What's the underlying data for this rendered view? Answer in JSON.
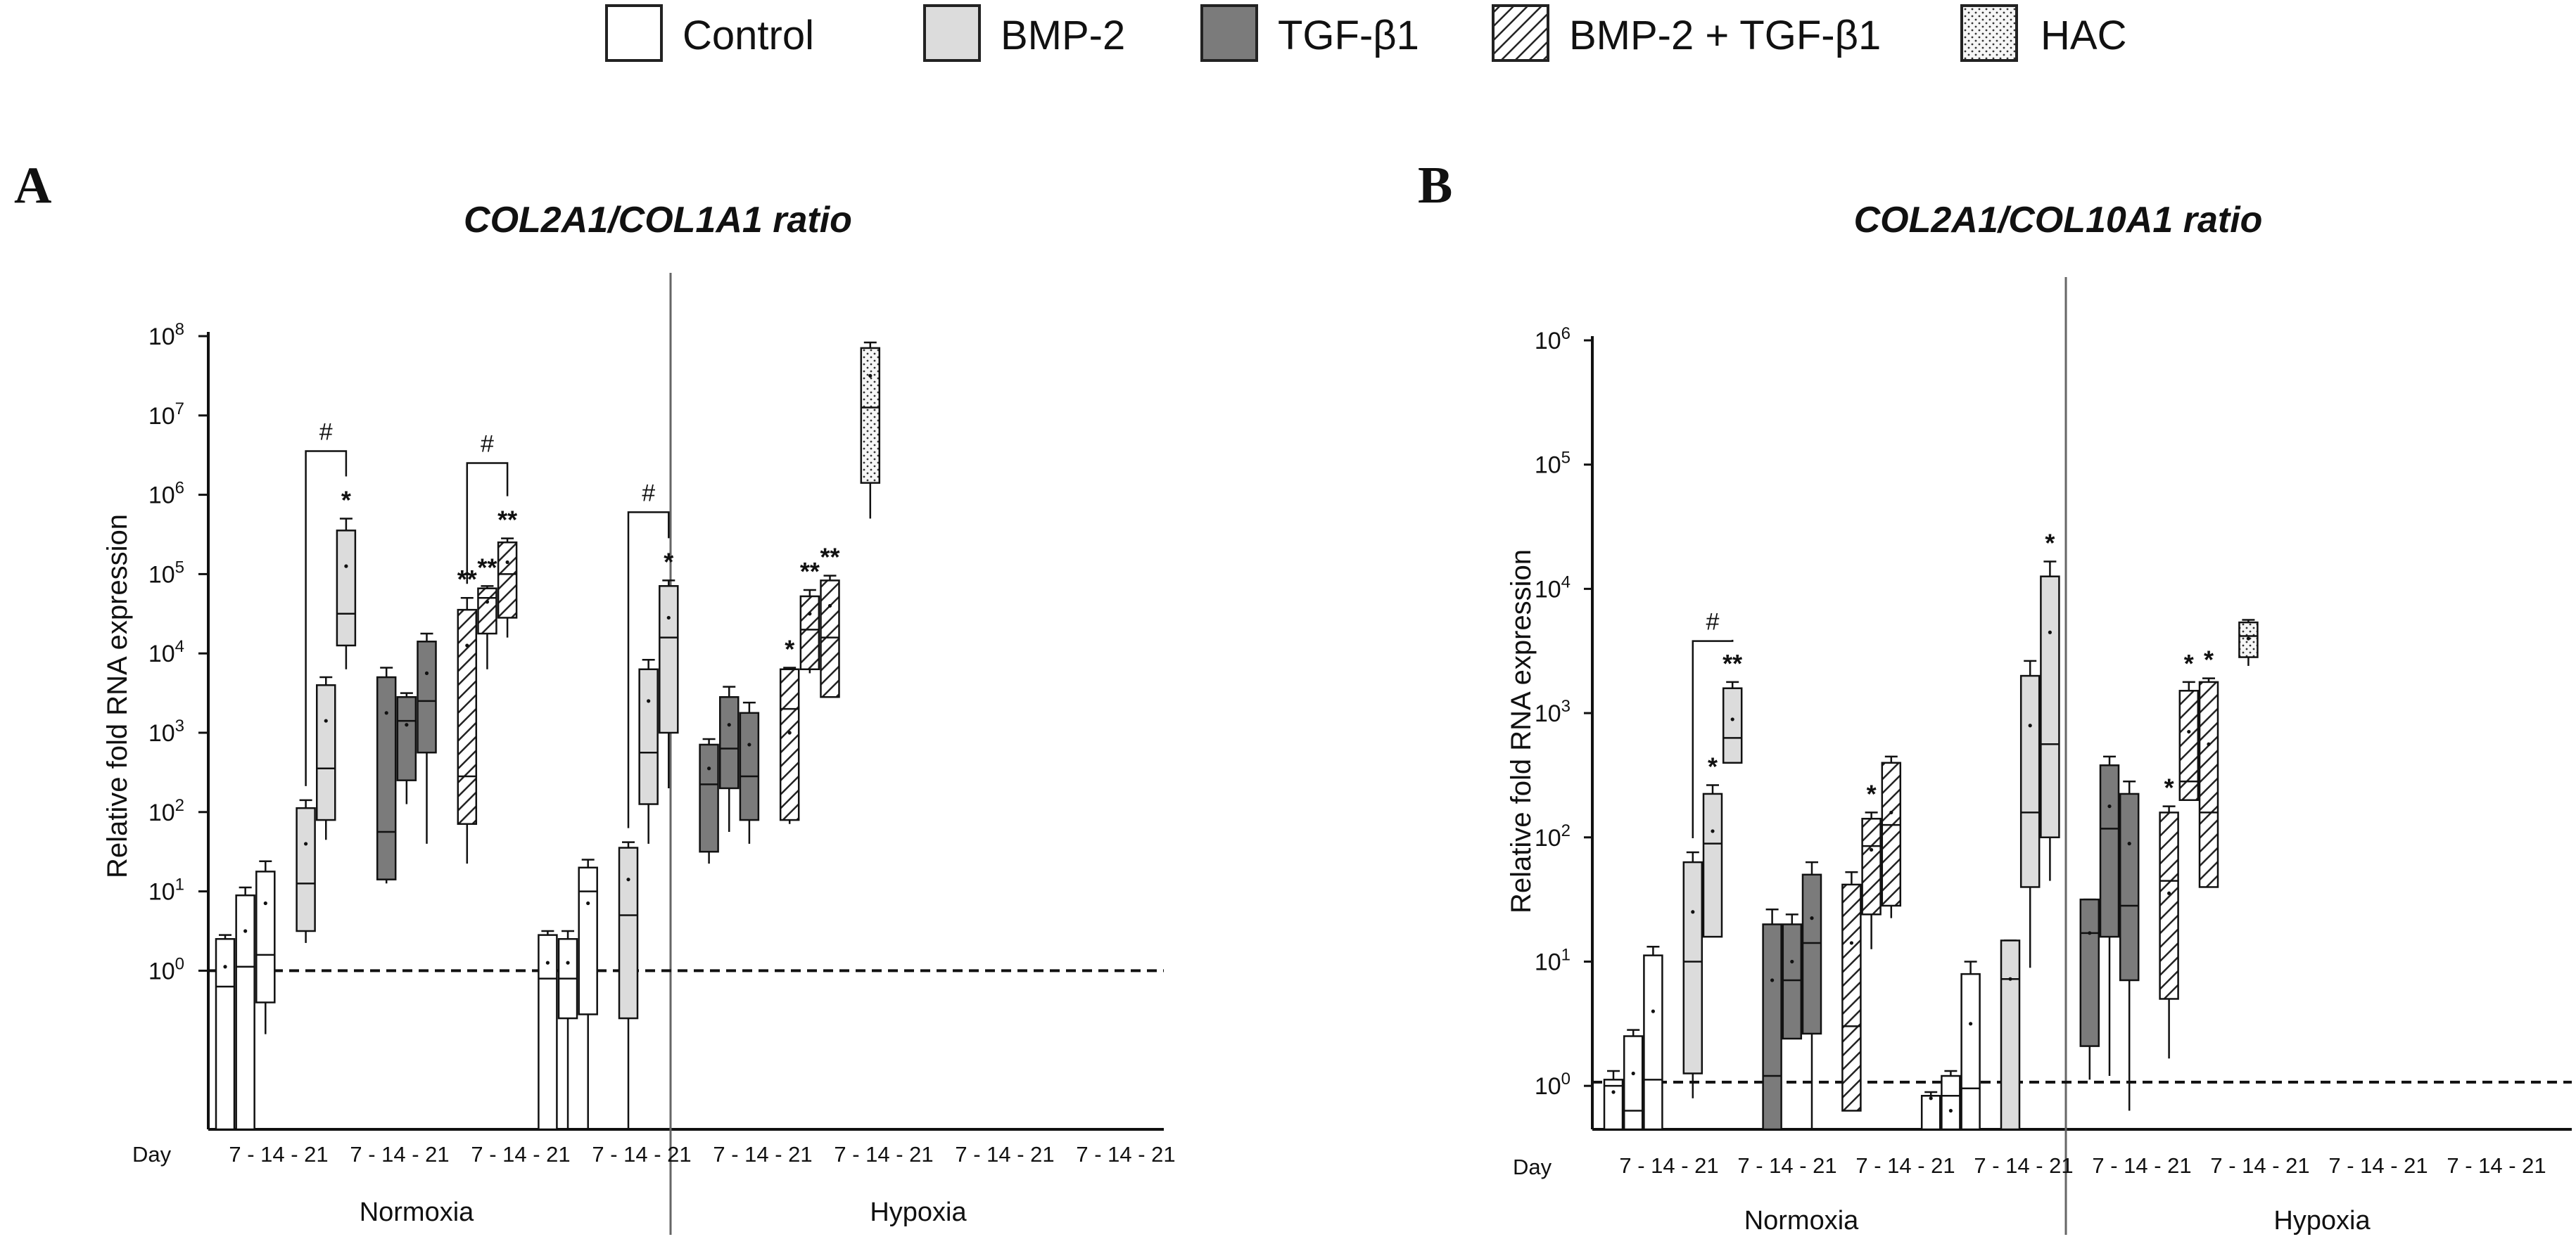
{
  "legend": [
    {
      "label": "Control",
      "fill": "#ffffff",
      "pattern": "none"
    },
    {
      "label": "BMP-2",
      "fill": "#dcdcdc",
      "pattern": "none"
    },
    {
      "label": "TGF-β1",
      "fill": "#7b7b7b",
      "pattern": "none"
    },
    {
      "label": "BMP-2 + TGF-β1",
      "fill": "#ffffff",
      "pattern": "hatch"
    },
    {
      "label": "HAC",
      "fill": "#f4f4f4",
      "pattern": "dots"
    }
  ],
  "axis_common": {
    "ylabel": "Relative fold RNA expression",
    "day_label": "Day",
    "day_ticks": "7 - 14 - 21",
    "conditions": [
      "Normoxia",
      "Hypoxia"
    ]
  },
  "chart_data": [
    {
      "type": "box",
      "panel": "A",
      "title": "COL2A1/COL1A1 ratio",
      "ylabel": "Relative fold RNA expression",
      "yscale": "log",
      "ylim_log10": [
        -2,
        8
      ],
      "yticks": [
        {
          "base": "10",
          "exp": "0"
        },
        {
          "base": "10",
          "exp": "1"
        },
        {
          "base": "10",
          "exp": "2"
        },
        {
          "base": "10",
          "exp": "3"
        },
        {
          "base": "10",
          "exp": "4"
        },
        {
          "base": "10",
          "exp": "5"
        },
        {
          "base": "10",
          "exp": "6"
        },
        {
          "base": "10",
          "exp": "7"
        },
        {
          "base": "10",
          "exp": "8"
        }
      ],
      "reference_line_log10": 0,
      "boxes": [
        {
          "slot": 0,
          "group": "Control",
          "condition": "Normoxia",
          "day": 7,
          "q1": -2,
          "median": -0.2,
          "q3": 0.4,
          "wlo": -2,
          "whi": 0.45,
          "mean": 0.05,
          "sig": ""
        },
        {
          "slot": 1,
          "group": "Control",
          "condition": "Normoxia",
          "day": 14,
          "q1": -2,
          "median": 0.05,
          "q3": 0.95,
          "wlo": -2,
          "whi": 1.05,
          "mean": 0.5,
          "sig": ""
        },
        {
          "slot": 2,
          "group": "Control",
          "condition": "Normoxia",
          "day": 21,
          "q1": -0.4,
          "median": 0.2,
          "q3": 1.25,
          "wlo": -0.8,
          "whi": 1.38,
          "mean": 0.85,
          "sig": ""
        },
        {
          "slot": 4,
          "group": "BMP-2",
          "condition": "Normoxia",
          "day": 7,
          "q1": 0.5,
          "median": 1.1,
          "q3": 2.05,
          "wlo": 0.35,
          "whi": 2.15,
          "mean": 1.6,
          "sig": ""
        },
        {
          "slot": 5,
          "group": "BMP-2",
          "condition": "Normoxia",
          "day": 14,
          "q1": 1.9,
          "median": 2.55,
          "q3": 3.6,
          "wlo": 1.65,
          "whi": 3.7,
          "mean": 3.15,
          "sig": ""
        },
        {
          "slot": 6,
          "group": "BMP-2",
          "condition": "Normoxia",
          "day": 21,
          "q1": 4.1,
          "median": 4.5,
          "q3": 5.55,
          "wlo": 3.8,
          "whi": 5.7,
          "mean": 5.1,
          "sig": "*"
        },
        {
          "slot": 8,
          "group": "TGF-β1",
          "condition": "Normoxia",
          "day": 7,
          "q1": 1.15,
          "median": 1.75,
          "q3": 3.7,
          "wlo": 1.1,
          "whi": 3.82,
          "mean": 3.25,
          "sig": ""
        },
        {
          "slot": 9,
          "group": "TGF-β1",
          "condition": "Normoxia",
          "day": 14,
          "q1": 2.4,
          "median": 3.15,
          "q3": 3.45,
          "wlo": 2.1,
          "whi": 3.5,
          "mean": 3.1,
          "sig": ""
        },
        {
          "slot": 10,
          "group": "TGF-β1",
          "condition": "Normoxia",
          "day": 21,
          "q1": 2.75,
          "median": 3.4,
          "q3": 4.15,
          "wlo": 1.6,
          "whi": 4.25,
          "mean": 3.75,
          "sig": ""
        },
        {
          "slot": 12,
          "group": "BMP-2 + TGF-β1",
          "condition": "Normoxia",
          "day": 7,
          "q1": 1.85,
          "median": 2.45,
          "q3": 4.55,
          "wlo": 1.35,
          "whi": 4.7,
          "mean": 4.1,
          "sig": "**"
        },
        {
          "slot": 13,
          "group": "BMP-2 + TGF-β1",
          "condition": "Normoxia",
          "day": 14,
          "q1": 4.25,
          "median": 4.7,
          "q3": 4.82,
          "wlo": 3.8,
          "whi": 4.85,
          "mean": 4.65,
          "sig": "**"
        },
        {
          "slot": 14,
          "group": "BMP-2 + TGF-β1",
          "condition": "Normoxia",
          "day": 21,
          "q1": 4.45,
          "median": 5.0,
          "q3": 5.4,
          "wlo": 4.2,
          "whi": 5.45,
          "mean": 5.15,
          "sig": "**"
        },
        {
          "slot": 16,
          "group": "Control",
          "condition": "Hypoxia",
          "day": 7,
          "q1": -2,
          "median": -0.1,
          "q3": 0.45,
          "wlo": -2,
          "whi": 0.5,
          "mean": 0.1,
          "sig": ""
        },
        {
          "slot": 17,
          "group": "Control",
          "condition": "Hypoxia",
          "day": 14,
          "q1": -0.6,
          "median": -0.1,
          "q3": 0.4,
          "wlo": -2,
          "whi": 0.5,
          "mean": 0.1,
          "sig": ""
        },
        {
          "slot": 18,
          "group": "Control",
          "condition": "Hypoxia",
          "day": 21,
          "q1": -0.55,
          "median": 1.0,
          "q3": 1.3,
          "wlo": -2,
          "whi": 1.4,
          "mean": 0.85,
          "sig": ""
        },
        {
          "slot": 20,
          "group": "BMP-2",
          "condition": "Hypoxia",
          "day": 7,
          "q1": -0.6,
          "median": 0.7,
          "q3": 1.55,
          "wlo": -2,
          "whi": 1.62,
          "mean": 1.15,
          "sig": ""
        },
        {
          "slot": 21,
          "group": "BMP-2",
          "condition": "Hypoxia",
          "day": 14,
          "q1": 2.1,
          "median": 2.75,
          "q3": 3.8,
          "wlo": 1.6,
          "whi": 3.92,
          "mean": 3.4,
          "sig": ""
        },
        {
          "slot": 22,
          "group": "BMP-2",
          "condition": "Hypoxia",
          "day": 21,
          "q1": 3.0,
          "median": 4.2,
          "q3": 4.85,
          "wlo": 2.3,
          "whi": 4.92,
          "mean": 4.45,
          "sig": "*"
        },
        {
          "slot": 24,
          "group": "TGF-β1",
          "condition": "Hypoxia",
          "day": 7,
          "q1": 1.5,
          "median": 2.35,
          "q3": 2.85,
          "wlo": 1.35,
          "whi": 2.92,
          "mean": 2.55,
          "sig": ""
        },
        {
          "slot": 25,
          "group": "TGF-β1",
          "condition": "Hypoxia",
          "day": 14,
          "q1": 2.3,
          "median": 2.8,
          "q3": 3.45,
          "wlo": 1.75,
          "whi": 3.58,
          "mean": 3.1,
          "sig": ""
        },
        {
          "slot": 26,
          "group": "TGF-β1",
          "condition": "Hypoxia",
          "day": 21,
          "q1": 1.9,
          "median": 2.45,
          "q3": 3.25,
          "wlo": 1.6,
          "whi": 3.38,
          "mean": 2.85,
          "sig": ""
        },
        {
          "slot": 28,
          "group": "BMP-2 + TGF-β1",
          "condition": "Hypoxia",
          "day": 7,
          "q1": 1.9,
          "median": 3.3,
          "q3": 3.8,
          "wlo": 1.85,
          "whi": 3.82,
          "mean": 3.0,
          "sig": "*"
        },
        {
          "slot": 29,
          "group": "BMP-2 + TGF-β1",
          "condition": "Hypoxia",
          "day": 14,
          "q1": 3.8,
          "median": 4.3,
          "q3": 4.72,
          "wlo": 3.75,
          "whi": 4.8,
          "mean": 4.5,
          "sig": "**"
        },
        {
          "slot": 30,
          "group": "BMP-2 + TGF-β1",
          "condition": "Hypoxia",
          "day": 21,
          "q1": 3.45,
          "median": 4.2,
          "q3": 4.92,
          "wlo": 3.45,
          "whi": 4.98,
          "mean": 4.6,
          "sig": "**"
        },
        {
          "slot": 32,
          "group": "HAC",
          "condition": "Hypoxia",
          "day": 0,
          "q1": 6.15,
          "median": 7.1,
          "q3": 7.85,
          "wlo": 5.7,
          "whi": 7.92,
          "mean": 7.5,
          "sig": ""
        }
      ],
      "brackets": [
        {
          "from_slot": 4,
          "to_slot": 6,
          "y_log10": 6.55,
          "label": "#"
        },
        {
          "from_slot": 12,
          "to_slot": 14,
          "y_log10": 6.4,
          "label": "#"
        },
        {
          "from_slot": 20,
          "to_slot": 22,
          "y_log10": 5.78,
          "label": "#"
        }
      ]
    },
    {
      "type": "box",
      "panel": "B",
      "title": "COL2A1/COL10A1 ratio",
      "ylabel": "Relative fold RNA expression",
      "yscale": "log",
      "ylim_log10": [
        -0.35,
        6
      ],
      "yticks": [
        {
          "base": "10",
          "exp": "0"
        },
        {
          "base": "10",
          "exp": "1"
        },
        {
          "base": "10",
          "exp": "2"
        },
        {
          "base": "10",
          "exp": "3"
        },
        {
          "base": "10",
          "exp": "4"
        },
        {
          "base": "10",
          "exp": "5"
        },
        {
          "base": "10",
          "exp": "6"
        }
      ],
      "reference_line_log10": 0.03,
      "boxes": [
        {
          "slot": 0,
          "group": "Control",
          "condition": "Normoxia",
          "day": 7,
          "q1": -0.35,
          "median": 0.0,
          "q3": 0.05,
          "wlo": -0.35,
          "whi": 0.12,
          "mean": -0.05,
          "sig": ""
        },
        {
          "slot": 1,
          "group": "Control",
          "condition": "Normoxia",
          "day": 14,
          "q1": -0.35,
          "median": -0.2,
          "q3": 0.4,
          "wlo": -0.35,
          "whi": 0.45,
          "mean": 0.1,
          "sig": ""
        },
        {
          "slot": 2,
          "group": "Control",
          "condition": "Normoxia",
          "day": 21,
          "q1": -0.35,
          "median": 0.05,
          "q3": 1.05,
          "wlo": -0.35,
          "whi": 1.12,
          "mean": 0.6,
          "sig": ""
        },
        {
          "slot": 4,
          "group": "BMP-2",
          "condition": "Normoxia",
          "day": 7,
          "q1": 0.1,
          "median": 1.0,
          "q3": 1.8,
          "wlo": -0.1,
          "whi": 1.88,
          "mean": 1.4,
          "sig": ""
        },
        {
          "slot": 5,
          "group": "BMP-2",
          "condition": "Normoxia",
          "day": 14,
          "q1": 1.2,
          "median": 1.95,
          "q3": 2.35,
          "wlo": 1.2,
          "whi": 2.42,
          "mean": 2.05,
          "sig": "*"
        },
        {
          "slot": 6,
          "group": "BMP-2",
          "condition": "Normoxia",
          "day": 21,
          "q1": 2.6,
          "median": 2.8,
          "q3": 3.2,
          "wlo": 2.6,
          "whi": 3.25,
          "mean": 2.95,
          "sig": "**"
        },
        {
          "slot": 8,
          "group": "TGF-β1",
          "condition": "Normoxia",
          "day": 7,
          "q1": -0.35,
          "median": 0.08,
          "q3": 1.3,
          "wlo": -0.35,
          "whi": 1.42,
          "mean": 0.85,
          "sig": ""
        },
        {
          "slot": 9,
          "group": "TGF-β1",
          "condition": "Normoxia",
          "day": 14,
          "q1": 0.38,
          "median": 0.85,
          "q3": 1.3,
          "wlo": 0.38,
          "whi": 1.38,
          "mean": 1.0,
          "sig": ""
        },
        {
          "slot": 10,
          "group": "TGF-β1",
          "condition": "Normoxia",
          "day": 21,
          "q1": 0.42,
          "median": 1.15,
          "q3": 1.7,
          "wlo": -0.35,
          "whi": 1.8,
          "mean": 1.35,
          "sig": ""
        },
        {
          "slot": 12,
          "group": "BMP-2 + TGF-β1",
          "condition": "Normoxia",
          "day": 7,
          "q1": -0.2,
          "median": 0.48,
          "q3": 1.62,
          "wlo": -0.2,
          "whi": 1.72,
          "mean": 1.15,
          "sig": ""
        },
        {
          "slot": 13,
          "group": "BMP-2 + TGF-β1",
          "condition": "Normoxia",
          "day": 14,
          "q1": 1.38,
          "median": 1.93,
          "q3": 2.15,
          "wlo": 1.1,
          "whi": 2.2,
          "mean": 1.9,
          "sig": "*"
        },
        {
          "slot": 14,
          "group": "BMP-2 + TGF-β1",
          "condition": "Normoxia",
          "day": 21,
          "q1": 1.45,
          "median": 2.1,
          "q3": 2.6,
          "wlo": 1.35,
          "whi": 2.65,
          "mean": 2.2,
          "sig": ""
        },
        {
          "slot": 16,
          "group": "Control",
          "condition": "Hypoxia",
          "day": 7,
          "q1": -0.35,
          "median": -0.08,
          "q3": -0.08,
          "wlo": -0.35,
          "whi": -0.05,
          "mean": -0.1,
          "sig": ""
        },
        {
          "slot": 17,
          "group": "Control",
          "condition": "Hypoxia",
          "day": 14,
          "q1": -0.35,
          "median": -0.08,
          "q3": 0.08,
          "wlo": -0.35,
          "whi": 0.12,
          "mean": -0.2,
          "sig": ""
        },
        {
          "slot": 18,
          "group": "Control",
          "condition": "Hypoxia",
          "day": 21,
          "q1": -0.35,
          "median": -0.02,
          "q3": 0.9,
          "wlo": -0.35,
          "whi": 1.0,
          "mean": 0.5,
          "sig": ""
        },
        {
          "slot": 20,
          "group": "BMP-2",
          "condition": "Hypoxia",
          "day": 7,
          "q1": -0.35,
          "median": 0.86,
          "q3": 1.17,
          "wlo": -0.35,
          "whi": 1.17,
          "mean": 0.86,
          "sig": ""
        },
        {
          "slot": 21,
          "group": "BMP-2",
          "condition": "Hypoxia",
          "day": 14,
          "q1": 1.6,
          "median": 2.2,
          "q3": 3.3,
          "wlo": 0.95,
          "whi": 3.42,
          "mean": 2.9,
          "sig": ""
        },
        {
          "slot": 22,
          "group": "BMP-2",
          "condition": "Hypoxia",
          "day": 21,
          "q1": 2.0,
          "median": 2.75,
          "q3": 4.1,
          "wlo": 1.65,
          "whi": 4.22,
          "mean": 3.65,
          "sig": "*"
        },
        {
          "slot": 24,
          "group": "TGF-β1",
          "condition": "Hypoxia",
          "day": 7,
          "q1": 0.32,
          "median": 1.23,
          "q3": 1.5,
          "wlo": 0.05,
          "whi": 1.5,
          "mean": 1.23,
          "sig": ""
        },
        {
          "slot": 25,
          "group": "TGF-β1",
          "condition": "Hypoxia",
          "day": 14,
          "q1": 1.2,
          "median": 2.07,
          "q3": 2.58,
          "wlo": 0.08,
          "whi": 2.65,
          "mean": 2.25,
          "sig": ""
        },
        {
          "slot": 26,
          "group": "TGF-β1",
          "condition": "Hypoxia",
          "day": 21,
          "q1": 0.85,
          "median": 1.45,
          "q3": 2.35,
          "wlo": -0.2,
          "whi": 2.45,
          "mean": 1.95,
          "sig": ""
        },
        {
          "slot": 28,
          "group": "BMP-2 + TGF-β1",
          "condition": "Hypoxia",
          "day": 7,
          "q1": 0.7,
          "median": 1.65,
          "q3": 2.2,
          "wlo": 0.22,
          "whi": 2.25,
          "mean": 1.55,
          "sig": "*"
        },
        {
          "slot": 29,
          "group": "BMP-2 + TGF-β1",
          "condition": "Hypoxia",
          "day": 14,
          "q1": 2.3,
          "median": 2.45,
          "q3": 3.18,
          "wlo": 2.3,
          "whi": 3.25,
          "mean": 2.85,
          "sig": "*"
        },
        {
          "slot": 30,
          "group": "BMP-2 + TGF-β1",
          "condition": "Hypoxia",
          "day": 21,
          "q1": 1.6,
          "median": 2.2,
          "q3": 3.25,
          "wlo": 1.6,
          "whi": 3.28,
          "mean": 2.75,
          "sig": "*"
        },
        {
          "slot": 32,
          "group": "HAC",
          "condition": "Hypoxia",
          "day": 0,
          "q1": 3.45,
          "median": 3.62,
          "q3": 3.73,
          "wlo": 3.38,
          "whi": 3.75,
          "mean": 3.6,
          "sig": ""
        }
      ],
      "brackets": [
        {
          "from_slot": 4,
          "to_slot": 6,
          "y_log10": 3.58,
          "label": "#"
        }
      ]
    }
  ]
}
